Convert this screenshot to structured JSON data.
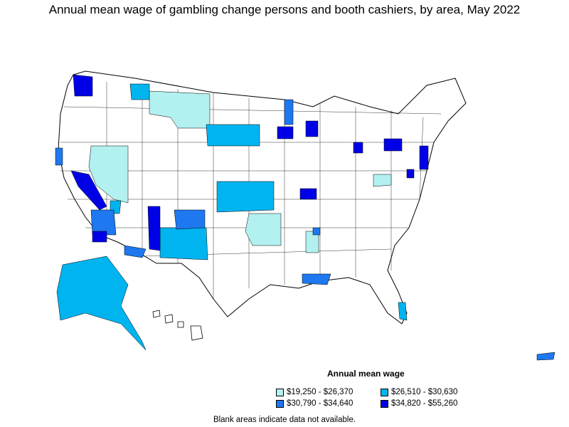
{
  "title": "Annual mean wage of gambling change persons and booth cashiers, by area, May 2022",
  "legend": {
    "title": "Annual mean wage",
    "items": [
      {
        "label": "$19,250 - $26,370",
        "color": "#b3f0f0"
      },
      {
        "label": "$26,510 - $30,630",
        "color": "#00b4f0"
      },
      {
        "label": "$30,790 - $34,640",
        "color": "#1e78f0"
      },
      {
        "label": "$34,820 - $55,260",
        "color": "#0000e6"
      }
    ]
  },
  "footnote": "Blank areas indicate data not available.",
  "colors": {
    "background": "#ffffff",
    "outline": "#000000",
    "no_data": "#ffffff"
  },
  "regions": [
    "Contiguous United States",
    "Alaska",
    "Hawaii",
    "Puerto Rico"
  ]
}
